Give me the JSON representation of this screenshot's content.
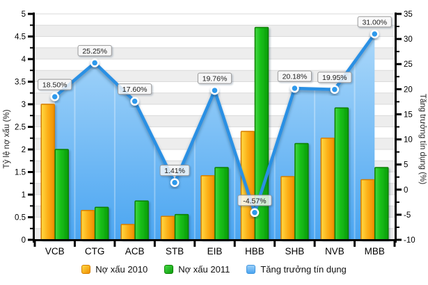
{
  "chart_data": {
    "type": "combo-bar-line-area",
    "categories": [
      "VCB",
      "CTG",
      "ACB",
      "STB",
      "EIB",
      "HBB",
      "SHB",
      "NVB",
      "MBB"
    ],
    "series": [
      {
        "name": "Nợ xấu 2010",
        "type": "bar",
        "axis": "left",
        "values": [
          3.0,
          0.65,
          0.34,
          0.52,
          1.42,
          2.4,
          1.4,
          2.25,
          1.33
        ]
      },
      {
        "name": "Nợ xấu 2011",
        "type": "bar",
        "axis": "left",
        "values": [
          2.0,
          0.72,
          0.86,
          0.56,
          1.6,
          4.7,
          2.13,
          2.92,
          1.6
        ]
      },
      {
        "name": "Tăng trưởng tín dụng",
        "type": "line-area",
        "axis": "right",
        "values": [
          18.5,
          25.25,
          17.6,
          1.41,
          19.76,
          -4.57,
          20.18,
          19.95,
          31.0
        ],
        "point_labels": [
          "18.50%",
          "25.25%",
          "17.60%",
          "1.41%",
          "19.76%",
          "-4.57%",
          "20.18%",
          "19.95%",
          "31.00%"
        ]
      }
    ],
    "left_axis": {
      "title": "Tỷ lệ nợ xấu (%)",
      "min": 0,
      "max": 5,
      "major_step": 0.5,
      "minor_step": 0.25,
      "tick_labels": [
        "0",
        "0.5",
        "1",
        "1.5",
        "2",
        "2.5",
        "3",
        "3.5",
        "4",
        "4.5",
        "5"
      ]
    },
    "right_axis": {
      "title": "Tăng trưởng tín dụng (%)",
      "min": -10,
      "max": 35,
      "major_step": 5,
      "minor_step": 2.5,
      "tick_labels": [
        "-10",
        "-5",
        "0",
        "5",
        "10",
        "15",
        "20",
        "25",
        "30",
        "35"
      ]
    },
    "legend_position": "bottom",
    "grid": true,
    "colors": {
      "bar_2010": [
        "#FFDA45",
        "#FCAF17",
        "#EF8E00"
      ],
      "bar_2010_border": "#D67E00",
      "bar_2011": [
        "#45D845",
        "#15BE15",
        "#0D9D0D"
      ],
      "bar_2011_border": "#0A8000",
      "line": "#2B90E4",
      "marker": "#2F99EC",
      "area_top": "#ABD8FA",
      "area_bottom": "#4AA5F1",
      "band": "#EDEDED",
      "grid": "#DADADA",
      "axis": "#000000",
      "callout_border": "#999999",
      "legend_blue": [
        "#9CCFF8",
        "#4AA5F1"
      ]
    }
  }
}
